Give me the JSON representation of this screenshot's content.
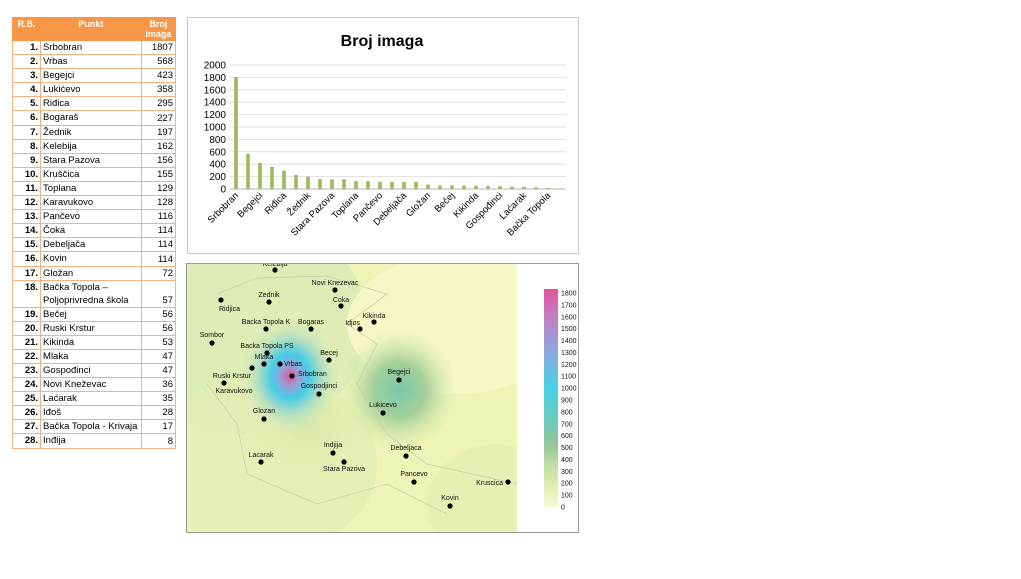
{
  "table": {
    "headers": [
      "R.B.",
      "Punkt",
      "Broj imaga"
    ],
    "rows": [
      [
        "1.",
        "Srbobran",
        "1807"
      ],
      [
        "2.",
        "Vrbas",
        "568"
      ],
      [
        "3.",
        "Begejci",
        "423"
      ],
      [
        "4.",
        "Lukićevo",
        "358"
      ],
      [
        "5.",
        "Riđica",
        "295"
      ],
      [
        "6.",
        "Bogaraš",
        "227"
      ],
      [
        "7.",
        "Žednik",
        "197"
      ],
      [
        "8.",
        "Kelebija",
        "162"
      ],
      [
        "9.",
        "Stara Pazova",
        "156"
      ],
      [
        "10.",
        "Kruščica",
        "155"
      ],
      [
        "11.",
        "Toplana",
        "129"
      ],
      [
        "12.",
        "Karavukovo",
        "128"
      ],
      [
        "13.",
        "Pančevo",
        "116"
      ],
      [
        "14.",
        "Čoka",
        "114"
      ],
      [
        "15.",
        "Debeljača",
        "114"
      ],
      [
        "16.",
        "Kovin",
        "114"
      ],
      [
        "17.",
        "Gložan",
        "72"
      ],
      [
        "18.",
        "Bačka Topola – Poljoprivredna škola",
        "57"
      ],
      [
        "19.",
        "Bečej",
        "56"
      ],
      [
        "20.",
        "Ruski Krstur",
        "56"
      ],
      [
        "21.",
        "Kikinda",
        "53"
      ],
      [
        "22.",
        "Mlaka",
        "47"
      ],
      [
        "23.",
        "Gospođinci",
        "47"
      ],
      [
        "24.",
        "Novi Kneževac",
        "36"
      ],
      [
        "25.",
        "Laćarak",
        "35"
      ],
      [
        "26.",
        "Iđoš",
        "28"
      ],
      [
        "27.",
        "Bačka Topola - Krivaja",
        "17"
      ],
      [
        "28.",
        "Inđija",
        "8"
      ]
    ]
  },
  "chart_data": {
    "type": "bar",
    "title": "Broj imaga",
    "color": "#9bbb59",
    "ylim": [
      0,
      2000
    ],
    "yticks": [
      0,
      200,
      400,
      600,
      800,
      1000,
      1200,
      1400,
      1600,
      1800,
      2000
    ],
    "categories": [
      "Srbobran",
      "Vrbas",
      "Begejci",
      "Lukićevo",
      "Riđica",
      "Bogaraš",
      "Žednik",
      "Kelebija",
      "Stara Pazova",
      "Kruščica",
      "Toplana",
      "Karavukovo",
      "Pančevo",
      "Čoka",
      "Debeljača",
      "Kovin",
      "Gložan",
      "Bačka Topola – Poljoprivredna škola",
      "Bečej",
      "Ruski Krstur",
      "Kikinda",
      "Mlaka",
      "Gospođinci",
      "Novi Kneževac",
      "Laćarak",
      "Iđoš",
      "Bačka Topola - Krivaja",
      "Inđija"
    ],
    "values": [
      1807,
      568,
      423,
      358,
      295,
      227,
      197,
      162,
      156,
      155,
      129,
      128,
      116,
      114,
      114,
      114,
      72,
      57,
      56,
      56,
      53,
      47,
      47,
      36,
      35,
      28,
      17,
      8
    ],
    "xtick_labels": [
      "Srbobran",
      "Begejci",
      "Riđica",
      "Žednik",
      "Stara Pazova",
      "Toplana",
      "Pančevo",
      "Debeljača",
      "Gložan",
      "Bečej",
      "Kikinda",
      "Gospođinci",
      "Laćarak",
      "Bačka Topola"
    ],
    "legend": "none",
    "grid": true
  },
  "map": {
    "labels": [
      "Kelebija",
      "Novi Knezevac",
      "Ridjica",
      "Zednik",
      "Coka",
      "Kikinda",
      "Idjos",
      "Backa Topola K",
      "Bogaras",
      "Sombor",
      "Backa Topola PS",
      "Becej",
      "Mlaka",
      "Vrbas",
      "Srbobran",
      "Ruski Krstur",
      "Karavukovo",
      "Gospodjinci",
      "Begejci",
      "Lukicevo",
      "Glozan",
      "Indjija",
      "Debeljaca",
      "Lacarak",
      "Stara Pazova",
      "Pancevo",
      "Kruscica",
      "Kovin"
    ],
    "colorbar_ticks": [
      "1800",
      "1700",
      "1600",
      "1500",
      "1400",
      "1300",
      "1200",
      "1100",
      "1000",
      "900",
      "800",
      "700",
      "600",
      "500",
      "400",
      "300",
      "200",
      "100",
      "0"
    ],
    "colorbar_colors": [
      "#e8539a",
      "#d76fb0",
      "#b98ac6",
      "#9a9ed6",
      "#7ab2e2",
      "#5cc4ea",
      "#48cde6",
      "#4fd0d6",
      "#62ccc0",
      "#78c8aa",
      "#8dc39a",
      "#a3cf9a",
      "#bcdca0",
      "#d4e7a6",
      "#e6efae",
      "#f1f4bb",
      "#f8f8c8"
    ]
  }
}
